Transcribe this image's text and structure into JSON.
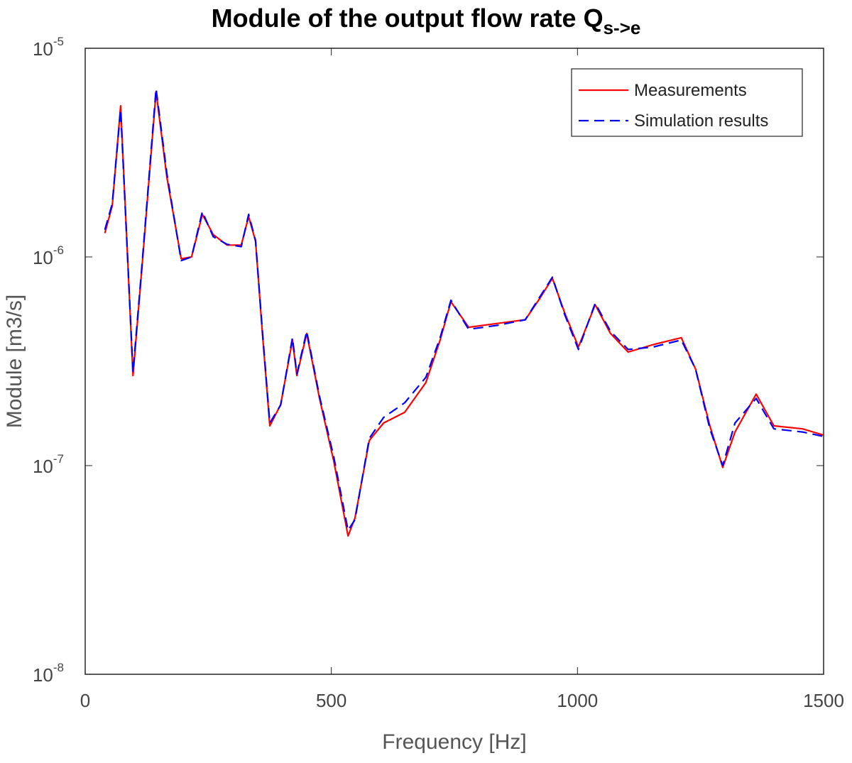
{
  "chart_data": {
    "type": "line",
    "title": "Module of the output flow rate Q",
    "title_subscript": "s->e",
    "x_label": "Frequency [Hz]",
    "y_label": "Module [m3/s]",
    "log_y": true,
    "legend": "upper right",
    "xlim": [
      0,
      1500
    ],
    "ylim": [
      1e-08,
      1e-05
    ],
    "xticks": [
      0,
      500,
      1000,
      1500
    ],
    "yticks": [
      {
        "value": 1e-08,
        "label": "10",
        "exponent": "-8"
      },
      {
        "value": 1e-07,
        "label": "10",
        "exponent": "-7"
      },
      {
        "value": 1e-06,
        "label": "10",
        "exponent": "-6"
      },
      {
        "value": 1e-05,
        "label": "10",
        "exponent": "-5"
      }
    ],
    "x": [
      40,
      55,
      72,
      97,
      115,
      144,
      166,
      195,
      216,
      238,
      260,
      288,
      317,
      332,
      346,
      360,
      375,
      397,
      421,
      430,
      450,
      476,
      505,
      534,
      548,
      577,
      606,
      649,
      692,
      721,
      743,
      779,
      837,
      894,
      923,
      949,
      974,
      1002,
      1036,
      1067,
      1103,
      1154,
      1211,
      1240,
      1269,
      1295,
      1320,
      1363,
      1399,
      1457,
      1500
    ],
    "series": [
      {
        "name": "Measurements",
        "color": "#ff0000",
        "dashed": false,
        "values": [
          1.3e-06,
          1.76e-06,
          5.3e-06,
          2.7e-07,
          8.7e-07,
          6.2e-06,
          2.4e-06,
          9.8e-07,
          1e-06,
          1.6e-06,
          1.28e-06,
          1.14e-06,
          1.14e-06,
          1.56e-06,
          1.19e-06,
          4.3e-07,
          1.55e-07,
          1.96e-07,
          4e-07,
          2.7e-07,
          4.3e-07,
          2.1e-07,
          1.05e-07,
          4.6e-08,
          5.6e-08,
          1.32e-07,
          1.6e-07,
          1.8e-07,
          2.5e-07,
          4e-07,
          6.1e-07,
          4.6e-07,
          4.8e-07,
          5e-07,
          6.3e-07,
          7.9e-07,
          5.4e-07,
          3.7e-07,
          5.9e-07,
          4.3e-07,
          3.5e-07,
          3.8e-07,
          4.1e-07,
          2.9e-07,
          1.55e-07,
          9.8e-08,
          1.45e-07,
          2.2e-07,
          1.55e-07,
          1.5e-07,
          1.4e-07
        ]
      },
      {
        "name": "Simulation results",
        "color": "#0000ff",
        "dashed": true,
        "values": [
          1.35e-06,
          1.8e-06,
          5.1e-06,
          2.8e-07,
          8.9e-07,
          6.4e-06,
          2.5e-06,
          9.6e-07,
          1e-06,
          1.65e-06,
          1.25e-06,
          1.15e-06,
          1.12e-06,
          1.6e-06,
          1.2e-06,
          4.4e-07,
          1.6e-07,
          1.95e-07,
          4.1e-07,
          2.75e-07,
          4.4e-07,
          2.15e-07,
          1.1e-07,
          4.9e-08,
          5.5e-08,
          1.35e-07,
          1.7e-07,
          2e-07,
          2.65e-07,
          4.1e-07,
          6.2e-07,
          4.5e-07,
          4.7e-07,
          5e-07,
          6.4e-07,
          8e-07,
          5.3e-07,
          3.6e-07,
          6e-07,
          4.4e-07,
          3.6e-07,
          3.7e-07,
          4e-07,
          2.9e-07,
          1.5e-07,
          1e-07,
          1.6e-07,
          2.1e-07,
          1.5e-07,
          1.45e-07,
          1.38e-07
        ]
      }
    ]
  }
}
